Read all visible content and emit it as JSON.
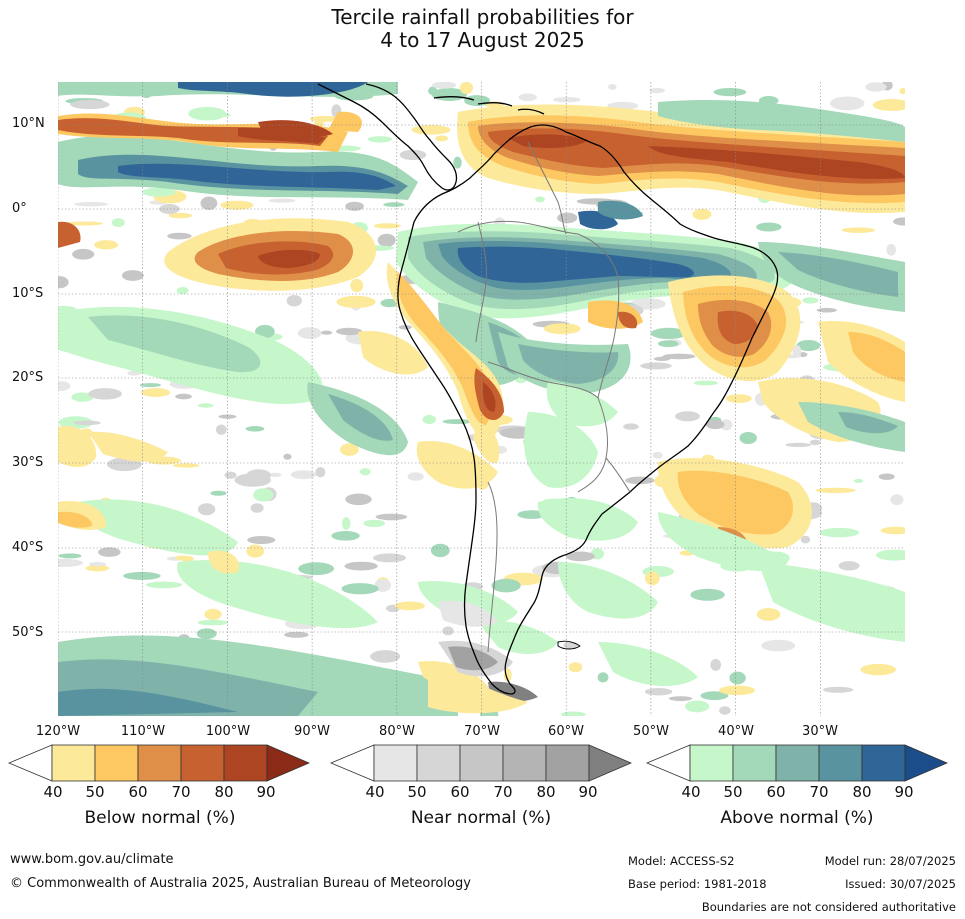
{
  "title": {
    "line1": "Tercile rainfall probabilities for",
    "line2": "4 to 17 August 2025"
  },
  "map": {
    "region": "South America",
    "lat_labels": [
      "10°N",
      "0°",
      "10°S",
      "20°S",
      "30°S",
      "40°S",
      "50°S"
    ],
    "lon_labels": [
      "120°W",
      "110°W",
      "100°W",
      "90°W",
      "80°W",
      "70°W",
      "60°W",
      "50°W",
      "40°W",
      "30°W"
    ],
    "grid": true,
    "colors": {
      "below": [
        "#ffffff",
        "#fde99a",
        "#fdc762",
        "#df8f47",
        "#c76230",
        "#ae4522",
        "#8a2a17"
      ],
      "near": [
        "#ffffff",
        "#e6e6e6",
        "#d6d6d6",
        "#c6c6c6",
        "#b4b4b4",
        "#a2a2a2",
        "#808080"
      ],
      "above": [
        "#ffffff",
        "#c6f7cb",
        "#a3d8b9",
        "#7fb3aa",
        "#5993a0",
        "#306697",
        "#1b4d8a"
      ]
    }
  },
  "colorbars": [
    {
      "title": "Below normal (%)",
      "ticks": [
        "40",
        "50",
        "60",
        "70",
        "80",
        "90"
      ]
    },
    {
      "title": "Near normal (%)",
      "ticks": [
        "40",
        "50",
        "60",
        "70",
        "80",
        "90"
      ]
    },
    {
      "title": "Above normal (%)",
      "ticks": [
        "40",
        "50",
        "60",
        "70",
        "80",
        "90"
      ]
    }
  ],
  "footer": {
    "website": "www.bom.gov.au/climate",
    "copyright": "© Commonwealth of Australia 2025, Australian Bureau of Meteorology",
    "model": "Model: ACCESS-S2",
    "base_period": "Base period: 1981-2018",
    "model_run": "Model run: 28/07/2025",
    "issued": "Issued: 30/07/2025",
    "disclaimer": "Boundaries are not considered authoritative"
  }
}
